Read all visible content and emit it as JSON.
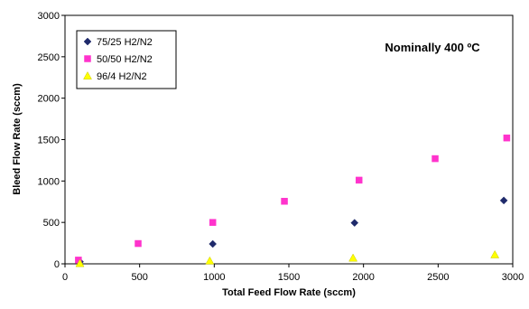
{
  "chart_data": {
    "type": "scatter",
    "title": "",
    "annotation": "Nominally 400 ºC",
    "xlabel": "Total Feed Flow Rate (sccm)",
    "ylabel": "Bleed Flow Rate (sccm)",
    "xlim": [
      0,
      3000
    ],
    "ylim": [
      0,
      3000
    ],
    "xticks": [
      "0",
      "500",
      "1000",
      "1500",
      "2000",
      "2500",
      "3000"
    ],
    "yticks": [
      "0",
      "500",
      "1000",
      "1500",
      "2000",
      "2500",
      "3000"
    ],
    "grid": false,
    "legend_position": "top-left",
    "series": [
      {
        "name": "75/25 H2/N2",
        "marker": "diamond",
        "color": "#1F2A6B",
        "points": [
          [
            100,
            25
          ],
          [
            990,
            240
          ],
          [
            1940,
            495
          ],
          [
            2940,
            765
          ]
        ]
      },
      {
        "name": "50/50 H2/N2",
        "marker": "square",
        "color": "#FF33CC",
        "points": [
          [
            90,
            45
          ],
          [
            490,
            245
          ],
          [
            990,
            500
          ],
          [
            1470,
            755
          ],
          [
            1970,
            1010
          ],
          [
            2480,
            1270
          ],
          [
            2960,
            1520
          ]
        ]
      },
      {
        "name": "96/4 H2/N2",
        "marker": "triangle",
        "color": "#FFFF00",
        "points": [
          [
            100,
            5
          ],
          [
            970,
            35
          ],
          [
            1930,
            70
          ],
          [
            2880,
            110
          ]
        ]
      }
    ]
  }
}
